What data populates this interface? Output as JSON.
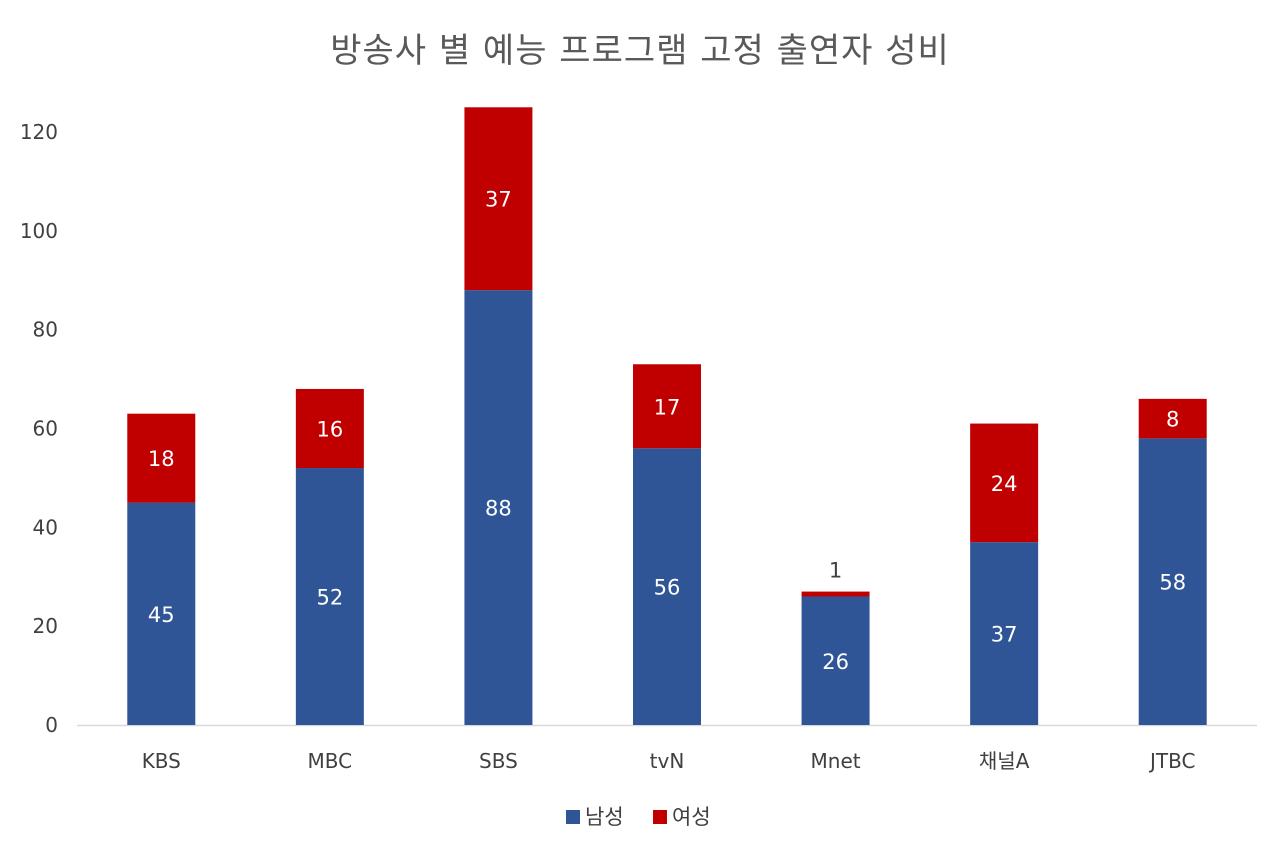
{
  "chart_data": {
    "type": "bar",
    "stacked": true,
    "title": "방송사 별 예능 프로그램 고정 출연자 성비",
    "xlabel": "",
    "ylabel": "",
    "categories": [
      "KBS",
      "MBC",
      "SBS",
      "tvN",
      "Mnet",
      "채널A",
      "JTBC"
    ],
    "series": [
      {
        "name": "남성",
        "color": "#2F5597",
        "label_color": "#ffffff",
        "values": [
          45,
          52,
          88,
          56,
          26,
          37,
          58
        ]
      },
      {
        "name": "여성",
        "color": "#C00000",
        "label_color": "#ffffff",
        "values": [
          18,
          16,
          37,
          17,
          1,
          24,
          8
        ]
      }
    ],
    "ylim": [
      0,
      120
    ],
    "yticks": [
      0,
      20,
      40,
      60,
      80,
      100,
      120
    ],
    "grid": false,
    "legend_position": "bottom"
  }
}
